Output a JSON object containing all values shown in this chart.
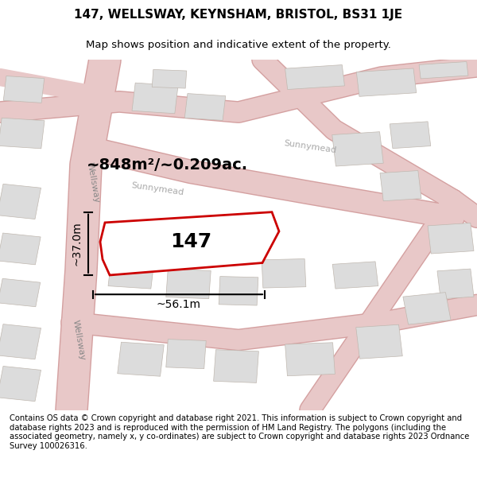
{
  "title": "147, WELLSWAY, KEYNSHAM, BRISTOL, BS31 1JE",
  "subtitle": "Map shows position and indicative extent of the property.",
  "footer": "Contains OS data © Crown copyright and database right 2021. This information is subject to Crown copyright and database rights 2023 and is reproduced with the permission of HM Land Registry. The polygons (including the associated geometry, namely x, y co-ordinates) are subject to Crown copyright and database rights 2023 Ordnance Survey 100026316.",
  "bg_color": "#f5f5f5",
  "map_bg": "#f0eeeb",
  "area_label": "~848m²/~0.209ac.",
  "property_label": "147",
  "dim_width": "~56.1m",
  "dim_height": "~37.0m",
  "street_wellsway": "Wellsway",
  "street_sunnymead": "Sunnymead",
  "road_color": "#e8c8c8",
  "road_stroke": "#d4a0a0",
  "property_fill": "white",
  "property_stroke": "#cc0000",
  "building_fill": "#dcdcdc",
  "building_stroke": "#c0b8b0",
  "road_line_color": "#b0b0b0",
  "map_xlim": [
    0,
    10
  ],
  "map_ylim": [
    0,
    10
  ]
}
